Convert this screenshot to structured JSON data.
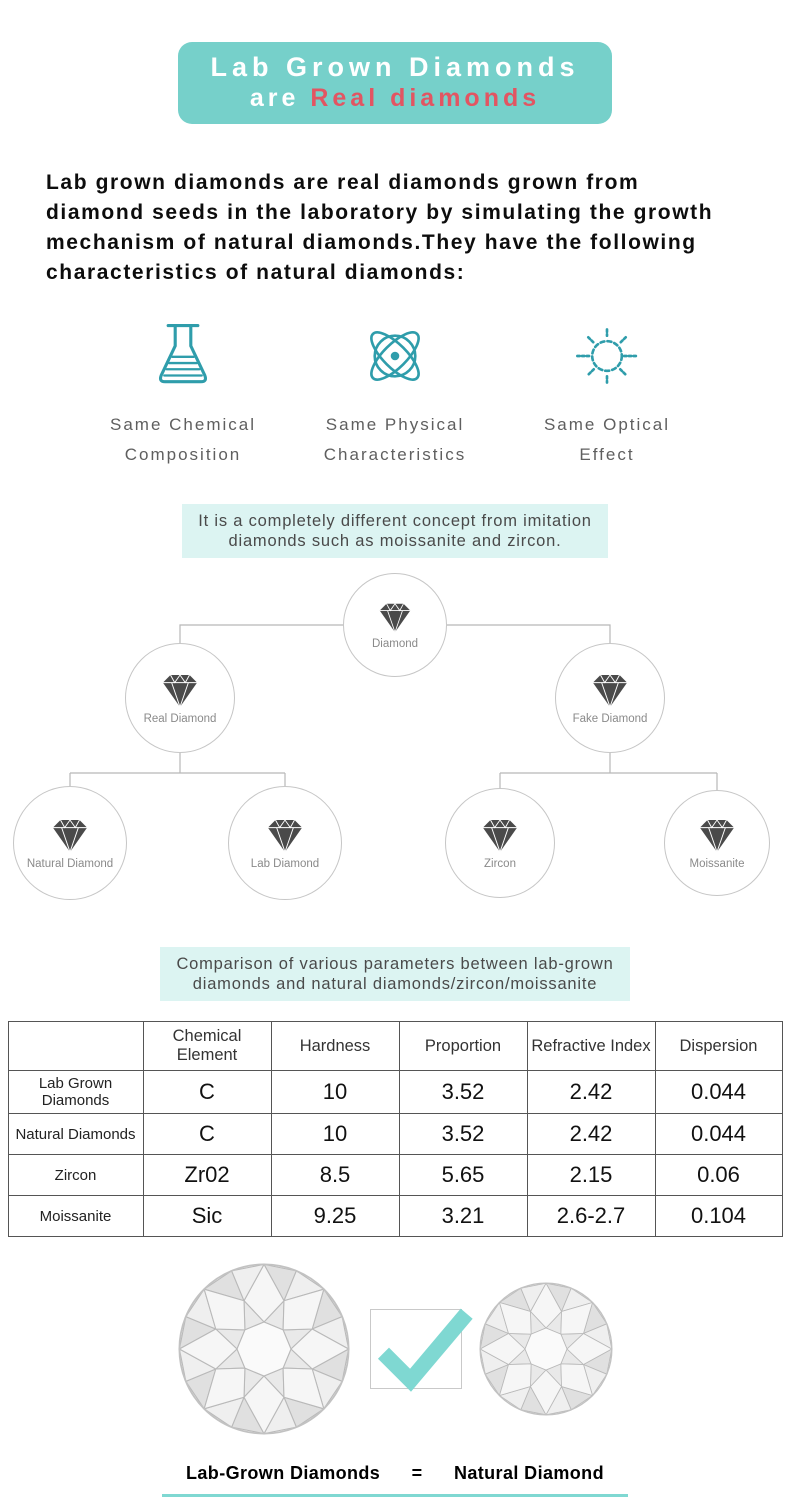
{
  "colors": {
    "teal": "#76d0ca",
    "red": "#e25562",
    "icon_teal": "#2f9dab",
    "highlight": "#dcf4f2",
    "check_teal": "#7fd8d2"
  },
  "banner": {
    "line1": "Lab Grown Diamonds",
    "line2_white": "are",
    "line2_red": "Real diamonds"
  },
  "intro": "Lab grown diamonds are real diamonds grown from diamond seeds in the laboratory by simulating the growth mechanism of natural diamonds.They have the following characteristics of natural diamonds:",
  "features": [
    {
      "icon": "flask-icon",
      "line1": "Same Chemical",
      "line2": "Composition"
    },
    {
      "icon": "atom-icon",
      "line1": "Same Physical",
      "line2": "Characteristics"
    },
    {
      "icon": "sun-icon",
      "line1": "Same Optical",
      "line2": "Effect"
    }
  ],
  "note1": {
    "line1": "It is a completely different concept from imitation",
    "line2": "diamonds such as moissanite and zircon."
  },
  "tree": {
    "root": "Diamond",
    "real": "Real Diamond",
    "fake": "Fake Diamond",
    "natural": "Natural Diamond",
    "lab": "Lab Diamond",
    "zircon": "Zircon",
    "moissanite": "Moissanite"
  },
  "note2": {
    "line1": "Comparison of various parameters between lab-grown",
    "line2": "diamonds and natural diamonds/zircon/moissanite"
  },
  "table": {
    "col0": "",
    "headers": [
      "Chemical Element",
      "Hardness",
      "Proportion",
      "Refractive Index",
      "Dispersion"
    ],
    "rows": [
      {
        "label": "Lab Grown Diamonds",
        "values": [
          "C",
          "10",
          "3.52",
          "2.42",
          "0.044"
        ]
      },
      {
        "label": "Natural Diamonds",
        "values": [
          "C",
          "10",
          "3.52",
          "2.42",
          "0.044"
        ]
      },
      {
        "label": "Zircon",
        "values": [
          "Zr02",
          "8.5",
          "5.65",
          "2.15",
          "0.06"
        ]
      },
      {
        "label": "Moissanite",
        "values": [
          "Sic",
          "9.25",
          "3.21",
          "2.6-2.7",
          "0.104"
        ]
      }
    ]
  },
  "equation": {
    "left": "Lab-Grown Diamonds",
    "eq": "=",
    "right": "Natural Diamond"
  }
}
